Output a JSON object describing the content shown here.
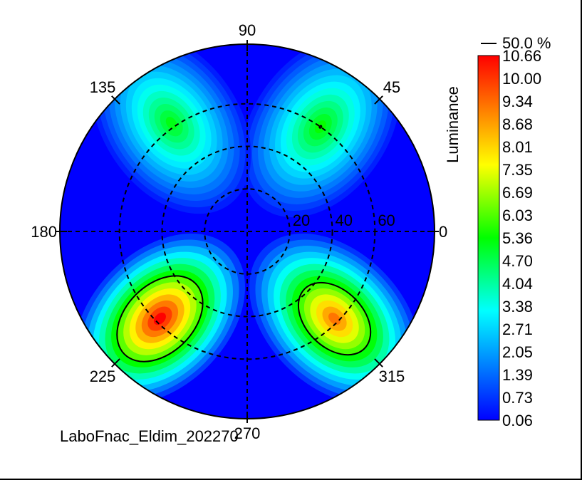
{
  "chart_data": {
    "type": "heatmap",
    "title": "",
    "subtitle": "",
    "projection": "polar (conoscopic)",
    "footer": "LaboFnac_Eldim_202270",
    "angular_labels": [
      "90",
      "45",
      "0",
      "315",
      "270",
      "225",
      "180",
      "135"
    ],
    "angles_deg": [
      90,
      45,
      0,
      315,
      270,
      225,
      180,
      135
    ],
    "radial_labels": [
      "20",
      "40",
      "60"
    ],
    "radial_values": [
      20,
      40,
      60
    ],
    "r_max": 88,
    "grid": true,
    "colorbar": {
      "label": "Luminance",
      "contour_label": "50.0 %",
      "ticks": [
        "10.66",
        "10.00",
        "9.34",
        "8.68",
        "8.01",
        "7.35",
        "6.69",
        "6.03",
        "5.36",
        "4.70",
        "4.04",
        "3.38",
        "2.71",
        "2.05",
        "1.39",
        "0.73",
        "0.06"
      ],
      "min": 0.06,
      "max": 10.66,
      "colors": [
        "#0000ff",
        "#0055ff",
        "#00aaff",
        "#00ffff",
        "#00ff80",
        "#00ff00",
        "#80ff00",
        "#ffff00",
        "#ffaa00",
        "#ff5500",
        "#ff0000"
      ]
    },
    "lobes": [
      {
        "azimuth_deg": 55,
        "radius_deg": 60,
        "peak": 5.4
      },
      {
        "azimuth_deg": 125,
        "radius_deg": 62,
        "peak": 5.2
      },
      {
        "azimuth_deg": 225,
        "radius_deg": 58,
        "peak": 10.66
      },
      {
        "azimuth_deg": 315,
        "radius_deg": 58,
        "peak": 9.2
      }
    ],
    "contour_fraction": 0.5
  }
}
